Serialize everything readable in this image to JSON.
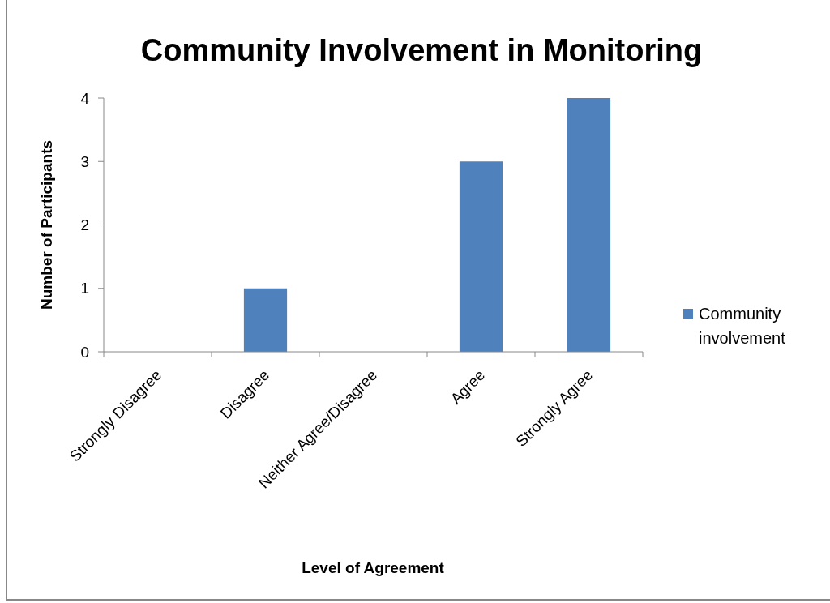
{
  "chart_data": {
    "type": "bar",
    "title": "Community Involvement in Monitoring",
    "xlabel": "Level of Agreement",
    "ylabel": "Number of Participants",
    "categories": [
      "Strongly Disagree",
      "Disagree",
      "Neither Agree/Disagree",
      "Agree",
      "Strongly Agree"
    ],
    "series": [
      {
        "name": "Community involvement",
        "color": "#4f81bd",
        "values": [
          0,
          1,
          0,
          3,
          4
        ]
      }
    ],
    "ylim": [
      0,
      4
    ],
    "yticks": [
      0,
      1,
      2,
      3,
      4
    ],
    "grid": false,
    "legend": "right"
  }
}
